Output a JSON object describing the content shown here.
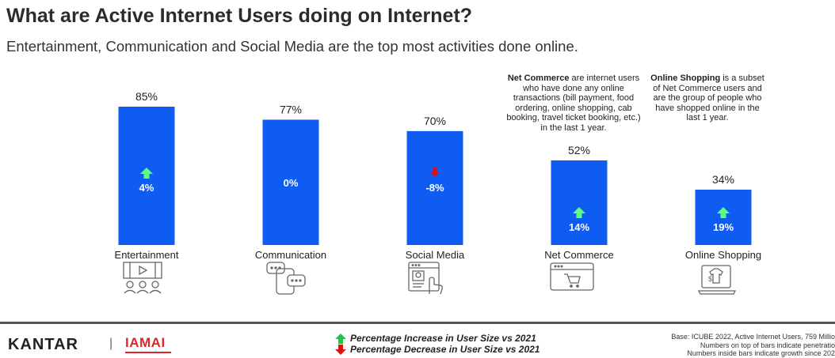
{
  "title": "What are Active Internet Users doing on Internet?",
  "subtitle": "Entertainment, Communication and Social Media are the top most activities done online.",
  "colors": {
    "bar": "#0f5cf2",
    "increase": "#5dff7e",
    "decrease": "#e01010",
    "inside_text": "#ffffff"
  },
  "chart_data": {
    "type": "bar",
    "categories": [
      "Entertainment",
      "Communication",
      "Social Media",
      "Net Commerce",
      "Online Shopping"
    ],
    "values": [
      85,
      77,
      70,
      52,
      34
    ],
    "value_labels": [
      "85%",
      "77%",
      "70%",
      "52%",
      "34%"
    ],
    "growth": [
      4,
      0,
      -8,
      14,
      19
    ],
    "growth_labels": [
      "4%",
      "0%",
      "-8%",
      "14%",
      "19%"
    ],
    "growth_direction": [
      "up",
      "none",
      "down",
      "up",
      "up"
    ],
    "ylim": [
      0,
      100
    ],
    "grid": false
  },
  "notes": {
    "net_commerce": {
      "bold": "Net Commerce",
      "text": " are internet users who have done any online transactions (bill payment, food ordering, online shopping, cab booking, travel ticket booking, etc.) in the last 1 year."
    },
    "online_shopping": {
      "bold": "Online Shopping",
      "text": " is a subset of Net Commerce users and are the group of people who have shopped online in the last 1 year."
    }
  },
  "icons": [
    "entertainment-icon",
    "communication-icon",
    "social-media-icon",
    "net-commerce-icon",
    "online-shopping-icon"
  ],
  "footer": {
    "kantar": "KANTAR",
    "separator": "|",
    "iamai": "IAMAI",
    "legend_increase": "Percentage Increase in User Size vs 2021",
    "legend_decrease": "Percentage Decrease in User Size vs 2021",
    "base_lines": [
      "Base: ICUBE 2022, Active Internet Users, 759 Millio",
      "Numbers on top of bars indicate penetratio",
      "Numbers inside bars indicate growth since 202"
    ]
  }
}
